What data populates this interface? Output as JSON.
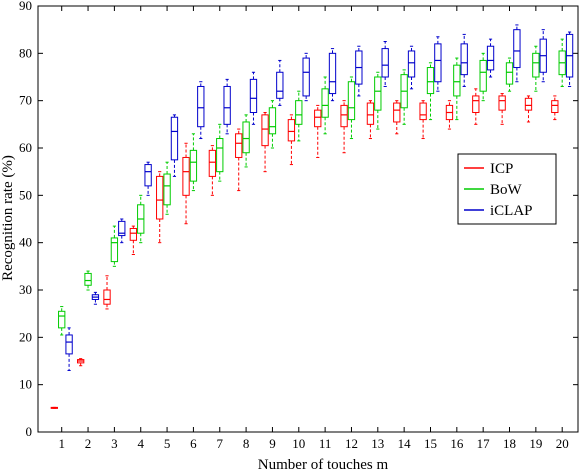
{
  "chart_data": {
    "type": "box",
    "xlabel": "Number of touches m",
    "ylabel": "Recognition rate (%)",
    "ylim": [
      0,
      90
    ],
    "yticks": [
      0,
      10,
      20,
      30,
      40,
      50,
      60,
      70,
      80,
      90
    ],
    "categories": [
      "1",
      "2",
      "3",
      "4",
      "5",
      "6",
      "7",
      "8",
      "9",
      "10",
      "11",
      "12",
      "13",
      "14",
      "15",
      "16",
      "17",
      "18",
      "19",
      "20"
    ],
    "legend_position": "right-middle",
    "grid": false,
    "series": [
      {
        "name": "ICP",
        "color": "#ff0000",
        "boxes": [
          {
            "q1": 5.0,
            "median": 5.1,
            "q3": 5.2,
            "whisker_low": 5.0,
            "whisker_high": 5.2
          },
          {
            "q1": 14.6,
            "median": 15.0,
            "q3": 15.3,
            "whisker_low": 14.0,
            "whisker_high": 15.5
          },
          {
            "q1": 27.0,
            "median": 28.0,
            "q3": 30.0,
            "whisker_low": 26.0,
            "whisker_high": 33.0
          },
          {
            "q1": 40.5,
            "median": 42.0,
            "q3": 43.0,
            "whisker_low": 37.5,
            "whisker_high": 43.5
          },
          {
            "q1": 45.0,
            "median": 49.0,
            "q3": 54.0,
            "whisker_low": 40.0,
            "whisker_high": 55.0
          },
          {
            "q1": 50.0,
            "median": 55.0,
            "q3": 58.0,
            "whisker_low": 44.0,
            "whisker_high": 61.0
          },
          {
            "q1": 54.0,
            "median": 57.0,
            "q3": 59.5,
            "whisker_low": 50.0,
            "whisker_high": 60.5
          },
          {
            "q1": 58.0,
            "median": 61.0,
            "q3": 63.0,
            "whisker_low": 51.0,
            "whisker_high": 64.0
          },
          {
            "q1": 60.5,
            "median": 64.0,
            "q3": 67.0,
            "whisker_low": 55.0,
            "whisker_high": 67.5
          },
          {
            "q1": 61.5,
            "median": 63.5,
            "q3": 66.0,
            "whisker_low": 56.5,
            "whisker_high": 67.0
          },
          {
            "q1": 64.5,
            "median": 66.5,
            "q3": 68.0,
            "whisker_low": 58.0,
            "whisker_high": 69.0
          },
          {
            "q1": 64.5,
            "median": 67.0,
            "q3": 69.0,
            "whisker_low": 59.0,
            "whisker_high": 70.0
          },
          {
            "q1": 65.0,
            "median": 67.0,
            "q3": 69.5,
            "whisker_low": 62.0,
            "whisker_high": 70.0
          },
          {
            "q1": 65.5,
            "median": 68.0,
            "q3": 69.5,
            "whisker_low": 63.0,
            "whisker_high": 70.0
          },
          {
            "q1": 66.0,
            "median": 67.0,
            "q3": 69.5,
            "whisker_low": 62.0,
            "whisker_high": 70.0
          },
          {
            "q1": 66.0,
            "median": 67.5,
            "q3": 69.0,
            "whisker_low": 64.0,
            "whisker_high": 70.0
          },
          {
            "q1": 67.5,
            "median": 70.0,
            "q3": 71.0,
            "whisker_low": 65.0,
            "whisker_high": 72.5
          },
          {
            "q1": 68.0,
            "median": 70.0,
            "q3": 71.0,
            "whisker_low": 65.0,
            "whisker_high": 71.5
          },
          {
            "q1": 68.0,
            "median": 69.0,
            "q3": 70.5,
            "whisker_low": 65.5,
            "whisker_high": 71.0
          },
          {
            "q1": 67.5,
            "median": 69.0,
            "q3": 70.0,
            "whisker_low": 66.0,
            "whisker_high": 71.0
          }
        ]
      },
      {
        "name": "BoW",
        "color": "#00cc00",
        "boxes": [
          {
            "q1": 22.0,
            "median": 24.5,
            "q3": 25.5,
            "whisker_low": 20.5,
            "whisker_high": 26.5
          },
          {
            "q1": 31.0,
            "median": 32.0,
            "q3": 33.5,
            "whisker_low": 30.0,
            "whisker_high": 34.0
          },
          {
            "q1": 36.0,
            "median": 40.0,
            "q3": 41.0,
            "whisker_low": 35.0,
            "whisker_high": 43.5
          },
          {
            "q1": 42.0,
            "median": 45.0,
            "q3": 48.0,
            "whisker_low": 40.0,
            "whisker_high": 50.0
          },
          {
            "q1": 48.0,
            "median": 52.0,
            "q3": 54.5,
            "whisker_low": 46.0,
            "whisker_high": 57.0
          },
          {
            "q1": 53.0,
            "median": 57.0,
            "q3": 59.5,
            "whisker_low": 51.0,
            "whisker_high": 63.0
          },
          {
            "q1": 55.0,
            "median": 60.0,
            "q3": 62.0,
            "whisker_low": 53.0,
            "whisker_high": 65.0
          },
          {
            "q1": 59.0,
            "median": 62.0,
            "q3": 65.5,
            "whisker_low": 56.0,
            "whisker_high": 67.0
          },
          {
            "q1": 63.0,
            "median": 64.5,
            "q3": 68.5,
            "whisker_low": 60.0,
            "whisker_high": 70.0
          },
          {
            "q1": 65.0,
            "median": 67.0,
            "q3": 70.0,
            "whisker_low": 61.5,
            "whisker_high": 72.0
          },
          {
            "q1": 66.5,
            "median": 69.0,
            "q3": 72.5,
            "whisker_low": 63.0,
            "whisker_high": 75.0
          },
          {
            "q1": 66.0,
            "median": 68.5,
            "q3": 74.0,
            "whisker_low": 62.0,
            "whisker_high": 75.0
          },
          {
            "q1": 68.0,
            "median": 72.0,
            "q3": 75.0,
            "whisker_low": 64.0,
            "whisker_high": 76.0
          },
          {
            "q1": 68.5,
            "median": 72.0,
            "q3": 75.5,
            "whisker_low": 65.0,
            "whisker_high": 76.5
          },
          {
            "q1": 71.5,
            "median": 74.0,
            "q3": 77.0,
            "whisker_low": 66.0,
            "whisker_high": 78.0
          },
          {
            "q1": 71.0,
            "median": 74.0,
            "q3": 77.5,
            "whisker_low": 66.0,
            "whisker_high": 79.0
          },
          {
            "q1": 72.0,
            "median": 76.0,
            "q3": 78.5,
            "whisker_low": 70.0,
            "whisker_high": 80.0
          },
          {
            "q1": 73.5,
            "median": 76.0,
            "q3": 78.0,
            "whisker_low": 72.0,
            "whisker_high": 79.0
          },
          {
            "q1": 75.0,
            "median": 78.0,
            "q3": 80.0,
            "whisker_low": 72.0,
            "whisker_high": 81.5
          },
          {
            "q1": 75.5,
            "median": 78.0,
            "q3": 80.5,
            "whisker_low": 73.0,
            "whisker_high": 83.0
          }
        ]
      },
      {
        "name": "iCLAP",
        "color": "#0000cc",
        "boxes": [
          {
            "q1": 16.5,
            "median": 19.0,
            "q3": 20.5,
            "whisker_low": 13.0,
            "whisker_high": 22.0
          },
          {
            "q1": 28.0,
            "median": 28.5,
            "q3": 29.0,
            "whisker_low": 27.0,
            "whisker_high": 29.5
          },
          {
            "q1": 41.5,
            "median": 42.0,
            "q3": 44.5,
            "whisker_low": 40.0,
            "whisker_high": 45.0
          },
          {
            "q1": 52.0,
            "median": 55.0,
            "q3": 56.5,
            "whisker_low": 50.0,
            "whisker_high": 57.0
          },
          {
            "q1": 57.5,
            "median": 63.5,
            "q3": 66.5,
            "whisker_low": 54.0,
            "whisker_high": 67.0
          },
          {
            "q1": 64.5,
            "median": 68.5,
            "q3": 73.0,
            "whisker_low": 62.0,
            "whisker_high": 74.0
          },
          {
            "q1": 65.0,
            "median": 68.5,
            "q3": 73.0,
            "whisker_low": 63.0,
            "whisker_high": 74.5
          },
          {
            "q1": 67.5,
            "median": 70.5,
            "q3": 74.5,
            "whisker_low": 65.0,
            "whisker_high": 76.0
          },
          {
            "q1": 70.5,
            "median": 72.0,
            "q3": 76.0,
            "whisker_low": 69.0,
            "whisker_high": 78.5
          },
          {
            "q1": 71.0,
            "median": 76.0,
            "q3": 79.0,
            "whisker_low": 70.0,
            "whisker_high": 80.0
          },
          {
            "q1": 71.5,
            "median": 74.0,
            "q3": 80.0,
            "whisker_low": 70.0,
            "whisker_high": 81.0
          },
          {
            "q1": 73.5,
            "median": 77.0,
            "q3": 80.5,
            "whisker_low": 71.0,
            "whisker_high": 81.5
          },
          {
            "q1": 75.0,
            "median": 77.5,
            "q3": 81.0,
            "whisker_low": 73.0,
            "whisker_high": 82.5
          },
          {
            "q1": 75.0,
            "median": 78.0,
            "q3": 80.5,
            "whisker_low": 72.5,
            "whisker_high": 81.5
          },
          {
            "q1": 74.0,
            "median": 78.5,
            "q3": 82.0,
            "whisker_low": 72.0,
            "whisker_high": 83.5
          },
          {
            "q1": 75.5,
            "median": 78.0,
            "q3": 82.0,
            "whisker_low": 73.0,
            "whisker_high": 84.0
          },
          {
            "q1": 76.5,
            "median": 78.5,
            "q3": 81.5,
            "whisker_low": 75.0,
            "whisker_high": 83.0
          },
          {
            "q1": 77.0,
            "median": 80.5,
            "q3": 85.0,
            "whisker_low": 74.0,
            "whisker_high": 86.0
          },
          {
            "q1": 76.0,
            "median": 79.5,
            "q3": 83.0,
            "whisker_low": 74.0,
            "whisker_high": 85.0
          },
          {
            "q1": 75.0,
            "median": 79.5,
            "q3": 84.0,
            "whisker_low": 73.0,
            "whisker_high": 84.5
          }
        ]
      }
    ]
  }
}
